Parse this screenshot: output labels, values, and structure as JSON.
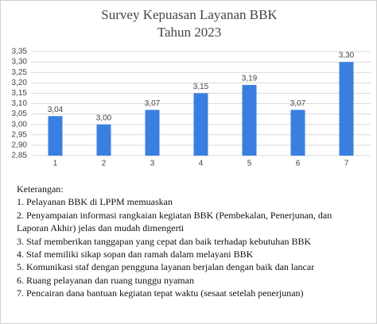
{
  "chart_data": {
    "type": "bar",
    "title": "Survey Kepuasan Layanan BBK",
    "subtitle": "Tahun 2023",
    "categories": [
      "1",
      "2",
      "3",
      "4",
      "5",
      "6",
      "7"
    ],
    "values": [
      3.04,
      3.0,
      3.07,
      3.15,
      3.19,
      3.07,
      3.3
    ],
    "value_labels": [
      "3,04",
      "3,00",
      "3,07",
      "3,15",
      "3,19",
      "3,07",
      "3,30"
    ],
    "color": "#3a7fe0",
    "ylim": [
      2.85,
      3.35
    ],
    "yticks": [
      {
        "value": 2.85,
        "label": "2,85"
      },
      {
        "value": 2.9,
        "label": "2,90"
      },
      {
        "value": 2.95,
        "label": "2,95"
      },
      {
        "value": 3.0,
        "label": "3,00"
      },
      {
        "value": 3.05,
        "label": "3,05"
      },
      {
        "value": 3.1,
        "label": "3,10"
      },
      {
        "value": 3.15,
        "label": "3,15"
      },
      {
        "value": 3.2,
        "label": "3,20"
      },
      {
        "value": 3.25,
        "label": "3,25"
      },
      {
        "value": 3.3,
        "label": "3,30"
      },
      {
        "value": 3.35,
        "label": "3,35"
      }
    ],
    "grid": true
  },
  "notes": {
    "heading": "Keterangan:",
    "items": [
      "1. Pelayanan BBK di LPPM memuaskan",
      "2. Penyampaian informasi rangkaian kegiatan BBK (Pembekalan, Penerjunan, dan Laporan Akhir) jelas dan mudah dimengerti",
      "3. Staf memberikan tanggapan yang cepat dan baik terhadap kebutuhan BBK",
      "4. Staf memiliki sikap sopan dan ramah dalam melayani BBK",
      "5. Komunikasi staf dengan pengguna layanan berjalan dengan baik dan lancar",
      "6. Ruang pelayanan dan ruang tunggu nyaman",
      "7. Pencairan dana bantuan kegiatan tepat waktu (sesaat setelah penerjunan)"
    ]
  }
}
